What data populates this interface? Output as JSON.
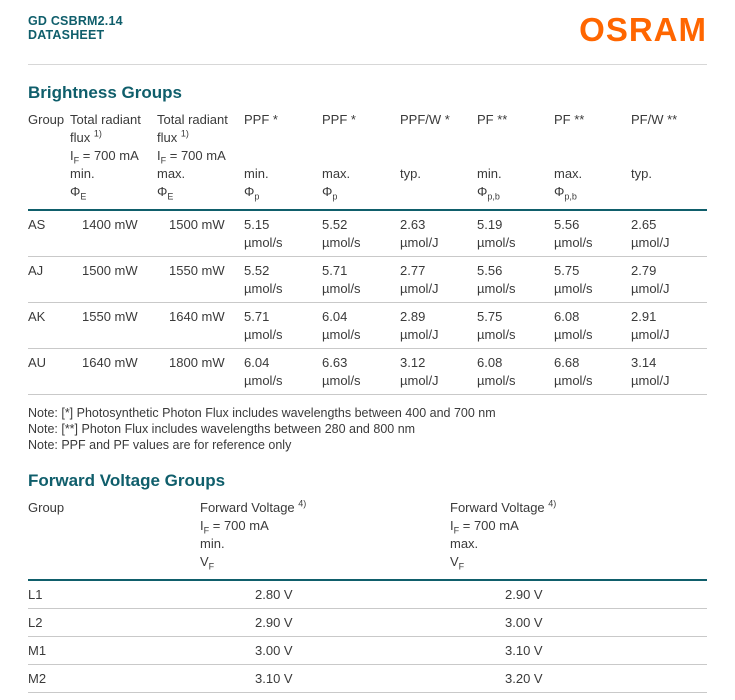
{
  "colors": {
    "teal": "#0f5e6b",
    "orange": "#ff6600"
  },
  "header": {
    "product": "GD CSBRM2.14",
    "doc_type": "DATASHEET",
    "logo": "OSRAM"
  },
  "brightness": {
    "title": "Brightness Groups",
    "columns": [
      {
        "l1": "Group"
      },
      {
        "l1": "Total radiant",
        "l2": "flux ^1)^",
        "l3": "I_F_ = 700 mA",
        "l4": "min.",
        "l5": "Φ_E_"
      },
      {
        "l1": "Total radiant",
        "l2": "flux ^1)^",
        "l3": "I_F_ = 700 mA",
        "l4": "max.",
        "l5": "Φ_E_"
      },
      {
        "l1": "PPF *",
        "l4": "min.",
        "l5": "Φ_p_"
      },
      {
        "l1": "PPF *",
        "l4": "max.",
        "l5": "Φ_p_"
      },
      {
        "l1": "PPF/W *",
        "l4": "typ."
      },
      {
        "l1": "PF **",
        "l4": "min.",
        "l5": "Φ_p,b_"
      },
      {
        "l1": "PF **",
        "l4": "max.",
        "l5": "Φ_p,b_"
      },
      {
        "l1": "PF/W **",
        "l4": "typ."
      }
    ],
    "rows": [
      {
        "group": "AS",
        "cells": [
          {
            "v": "1400 mW",
            "u": ""
          },
          {
            "v": "1500 mW",
            "u": ""
          },
          {
            "v": "5.15",
            "u": "µmol/s"
          },
          {
            "v": "5.52",
            "u": "µmol/s"
          },
          {
            "v": "2.63",
            "u": "µmol/J"
          },
          {
            "v": "5.19",
            "u": "µmol/s"
          },
          {
            "v": "5.56",
            "u": "µmol/s"
          },
          {
            "v": "2.65",
            "u": "µmol/J"
          }
        ]
      },
      {
        "group": "AJ",
        "cells": [
          {
            "v": "1500 mW",
            "u": ""
          },
          {
            "v": "1550 mW",
            "u": ""
          },
          {
            "v": "5.52",
            "u": "µmol/s"
          },
          {
            "v": "5.71",
            "u": "µmol/s"
          },
          {
            "v": "2.77",
            "u": "µmol/J"
          },
          {
            "v": "5.56",
            "u": "µmol/s"
          },
          {
            "v": "5.75",
            "u": "µmol/s"
          },
          {
            "v": "2.79",
            "u": "µmol/J"
          }
        ]
      },
      {
        "group": "AK",
        "cells": [
          {
            "v": "1550 mW",
            "u": ""
          },
          {
            "v": "1640 mW",
            "u": ""
          },
          {
            "v": "5.71",
            "u": "µmol/s"
          },
          {
            "v": "6.04",
            "u": "µmol/s"
          },
          {
            "v": "2.89",
            "u": "µmol/J"
          },
          {
            "v": "5.75",
            "u": "µmol/s"
          },
          {
            "v": "6.08",
            "u": "µmol/s"
          },
          {
            "v": "2.91",
            "u": "µmol/J"
          }
        ]
      },
      {
        "group": "AU",
        "cells": [
          {
            "v": "1640 mW",
            "u": ""
          },
          {
            "v": "1800 mW",
            "u": ""
          },
          {
            "v": "6.04",
            "u": "µmol/s"
          },
          {
            "v": "6.63",
            "u": "µmol/s"
          },
          {
            "v": "3.12",
            "u": "µmol/J"
          },
          {
            "v": "6.08",
            "u": "µmol/s"
          },
          {
            "v": "6.68",
            "u": "µmol/s"
          },
          {
            "v": "3.14",
            "u": "µmol/J"
          }
        ]
      }
    ],
    "notes": [
      "Note: [*] Photosynthetic Photon Flux includes wavelengths between 400 and 700 nm",
      "Note: [**] Photon Flux includes wavelengths between 280 and 800 nm",
      "Note: PPF and PF values are for reference only"
    ]
  },
  "forward_voltage": {
    "title": "Forward Voltage Groups",
    "columns": [
      {
        "l1": "Group"
      },
      {
        "l1": "Forward Voltage ^4)^",
        "l2": "I_F_ = 700 mA",
        "l3": "min.",
        "l4": "V_F_"
      },
      {
        "l1": "Forward Voltage ^4)^",
        "l2": "I_F_ = 700 mA",
        "l3": "max.",
        "l4": "V_F_"
      }
    ],
    "rows": [
      {
        "group": "L1",
        "min": "2.80 V",
        "max": "2.90 V"
      },
      {
        "group": "L2",
        "min": "2.90 V",
        "max": "3.00 V"
      },
      {
        "group": "M1",
        "min": "3.00 V",
        "max": "3.10 V"
      },
      {
        "group": "M2",
        "min": "3.10 V",
        "max": "3.20 V"
      }
    ]
  }
}
